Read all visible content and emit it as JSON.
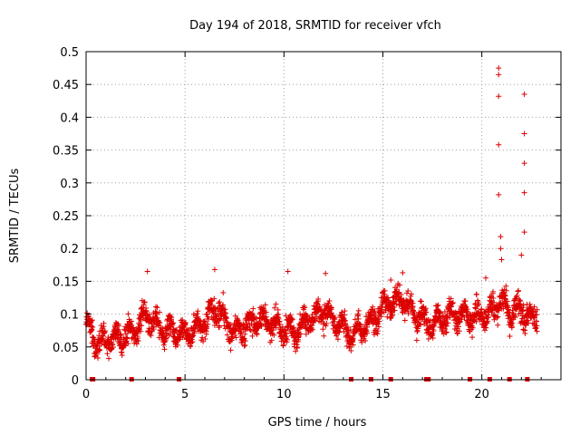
{
  "chart_data": {
    "type": "scatter",
    "title": "Day 194 of 2018, SRMTID for receiver vfch",
    "xlabel": "GPS time / hours",
    "ylabel": "SRMTID / TECUs",
    "xlim": [
      0,
      24
    ],
    "ylim": [
      0,
      0.5
    ],
    "xticks": [
      0,
      5,
      10,
      15,
      20
    ],
    "xtick_labels": [
      "0",
      "5",
      "10",
      "15",
      "20"
    ],
    "yticks": [
      0,
      0.05,
      0.1,
      0.15,
      0.2,
      0.25,
      0.3,
      0.35,
      0.4,
      0.45,
      0.5
    ],
    "ytick_labels": [
      "0",
      "0.05",
      "0.1",
      "0.15",
      "0.2",
      "0.25",
      "0.3",
      "0.35",
      "0.4",
      "0.45",
      "0.5"
    ],
    "grid": true,
    "marker": "+",
    "series": [
      {
        "name": "SRMTID",
        "color": "#dd0000",
        "trend": [
          [
            0.0,
            0.085
          ],
          [
            0.4,
            0.06
          ],
          [
            1.0,
            0.06
          ],
          [
            2.0,
            0.065
          ],
          [
            2.6,
            0.08
          ],
          [
            3.0,
            0.1
          ],
          [
            4.0,
            0.075
          ],
          [
            5.0,
            0.07
          ],
          [
            6.0,
            0.085
          ],
          [
            6.5,
            0.11
          ],
          [
            7.5,
            0.07
          ],
          [
            8.5,
            0.09
          ],
          [
            9.5,
            0.085
          ],
          [
            10.5,
            0.07
          ],
          [
            11.0,
            0.085
          ],
          [
            12.0,
            0.105
          ],
          [
            12.5,
            0.09
          ],
          [
            13.5,
            0.07
          ],
          [
            14.5,
            0.09
          ],
          [
            15.0,
            0.11
          ],
          [
            16.0,
            0.125
          ],
          [
            16.5,
            0.1
          ],
          [
            17.5,
            0.085
          ],
          [
            18.5,
            0.1
          ],
          [
            19.5,
            0.095
          ],
          [
            20.5,
            0.105
          ],
          [
            21.0,
            0.12
          ],
          [
            21.5,
            0.1
          ],
          [
            22.0,
            0.11
          ],
          [
            22.5,
            0.09
          ],
          [
            22.8,
            0.1
          ]
        ],
        "outliers": [
          [
            20.85,
            0.475
          ],
          [
            20.85,
            0.465
          ],
          [
            20.85,
            0.432
          ],
          [
            20.85,
            0.358
          ],
          [
            20.85,
            0.282
          ],
          [
            20.95,
            0.218
          ],
          [
            20.95,
            0.2
          ],
          [
            21.0,
            0.183
          ],
          [
            22.15,
            0.435
          ],
          [
            22.15,
            0.375
          ],
          [
            22.15,
            0.33
          ],
          [
            22.15,
            0.285
          ],
          [
            22.15,
            0.225
          ],
          [
            22.0,
            0.19
          ],
          [
            3.1,
            0.165
          ],
          [
            6.5,
            0.168
          ],
          [
            10.2,
            0.165
          ],
          [
            12.1,
            0.162
          ],
          [
            16.0,
            0.163
          ],
          [
            15.4,
            0.152
          ],
          [
            20.2,
            0.155
          ]
        ],
        "zero_points": [
          0.3,
          0.35,
          2.3,
          4.7,
          13.4,
          14.4,
          15.4,
          17.2,
          17.3,
          19.4,
          20.4,
          21.4,
          22.3
        ]
      }
    ]
  }
}
